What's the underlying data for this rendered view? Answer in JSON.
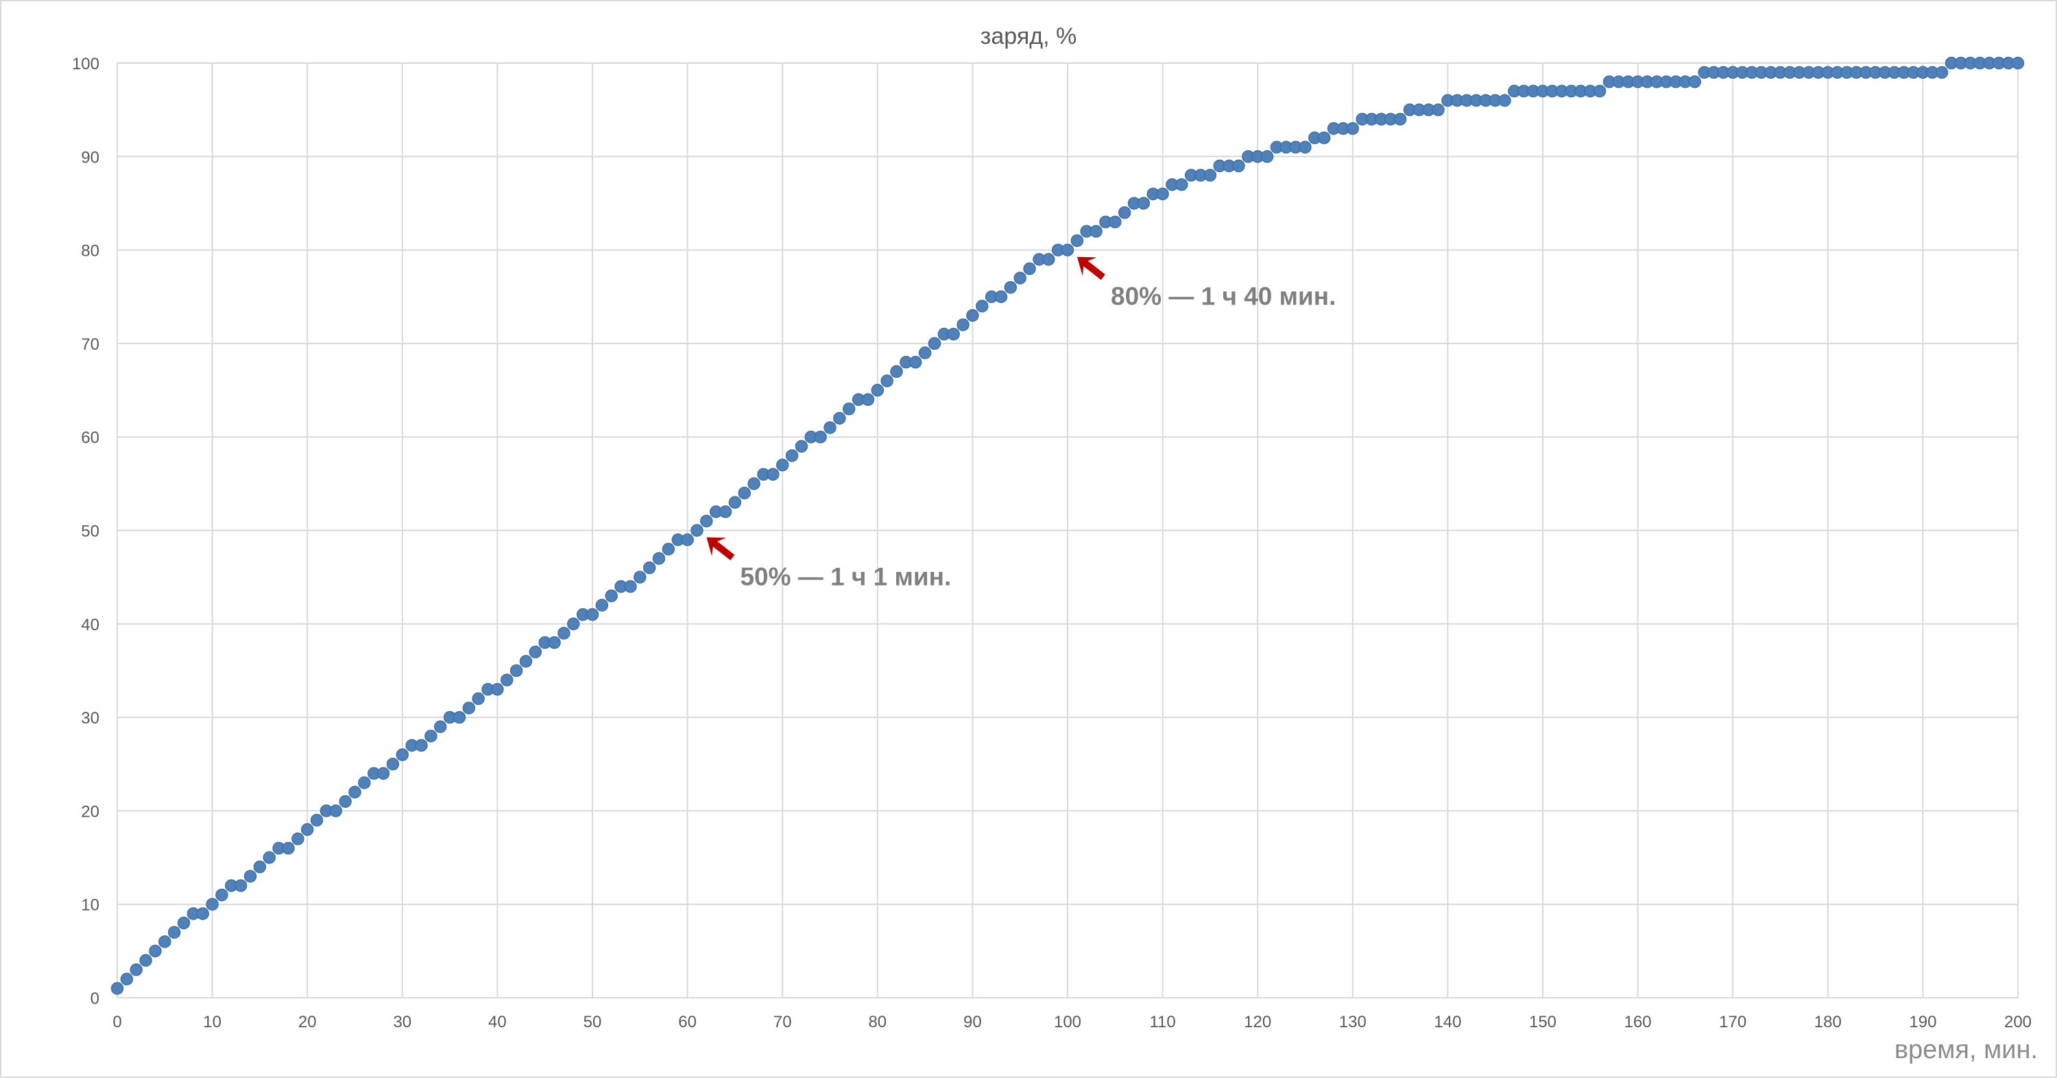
{
  "chart_data": {
    "type": "scatter",
    "title": "заряд, %",
    "xlabel": "время, мин.",
    "ylabel": "",
    "xlim": [
      0,
      200
    ],
    "ylim": [
      0,
      100
    ],
    "x_ticks": [
      0,
      10,
      20,
      30,
      40,
      50,
      60,
      70,
      80,
      90,
      100,
      110,
      120,
      130,
      140,
      150,
      160,
      170,
      180,
      190,
      200
    ],
    "y_ticks": [
      0,
      10,
      20,
      30,
      40,
      50,
      60,
      70,
      80,
      90,
      100
    ],
    "grid": "vertical and horizontal",
    "legend": "none",
    "series": [
      {
        "color": "#4f81bd",
        "x": [
          0,
          1,
          2,
          3,
          4,
          5,
          6,
          7,
          8,
          9,
          10,
          11,
          12,
          13,
          14,
          15,
          16,
          17,
          18,
          19,
          20,
          21,
          22,
          23,
          24,
          25,
          26,
          27,
          28,
          29,
          30,
          31,
          32,
          33,
          34,
          35,
          36,
          37,
          38,
          39,
          40,
          41,
          42,
          43,
          44,
          45,
          46,
          47,
          48,
          49,
          50,
          51,
          52,
          53,
          54,
          55,
          56,
          57,
          58,
          59,
          60,
          61,
          62,
          63,
          64,
          65,
          66,
          67,
          68,
          69,
          70,
          71,
          72,
          73,
          74,
          75,
          76,
          77,
          78,
          79,
          80,
          81,
          82,
          83,
          84,
          85,
          86,
          87,
          88,
          89,
          90,
          91,
          92,
          93,
          94,
          95,
          96,
          97,
          98,
          99,
          100,
          101,
          102,
          103,
          104,
          105,
          106,
          107,
          108,
          109,
          110,
          111,
          112,
          113,
          114,
          115,
          116,
          117,
          118,
          119,
          120,
          121,
          122,
          123,
          124,
          125,
          126,
          127,
          128,
          129,
          130,
          131,
          132,
          133,
          134,
          135,
          136,
          137,
          138,
          139,
          140,
          141,
          142,
          143,
          144,
          145,
          146,
          147,
          148,
          149,
          150,
          151,
          152,
          153,
          154,
          155,
          156,
          157,
          158,
          159,
          160,
          161,
          162,
          163,
          164,
          165,
          166,
          167,
          168,
          169,
          170,
          171,
          172,
          173,
          174,
          175,
          176,
          177,
          178,
          179,
          180,
          181,
          182,
          183,
          184,
          185,
          186,
          187,
          188,
          189,
          190,
          191,
          192,
          193,
          194,
          195,
          196,
          197,
          198,
          199,
          200
        ],
        "y": [
          1,
          2,
          3,
          4,
          5,
          6,
          7,
          8,
          9,
          9,
          10,
          11,
          12,
          12,
          13,
          14,
          15,
          16,
          16,
          17,
          18,
          19,
          20,
          20,
          21,
          22,
          23,
          24,
          24,
          25,
          26,
          27,
          27,
          28,
          29,
          30,
          30,
          31,
          32,
          33,
          33,
          34,
          35,
          36,
          37,
          38,
          38,
          39,
          40,
          41,
          41,
          42,
          43,
          44,
          44,
          45,
          46,
          47,
          48,
          49,
          49,
          50,
          51,
          52,
          52,
          53,
          54,
          55,
          56,
          56,
          57,
          58,
          59,
          60,
          60,
          61,
          62,
          63,
          64,
          64,
          65,
          66,
          67,
          68,
          68,
          69,
          70,
          71,
          71,
          72,
          73,
          74,
          75,
          75,
          76,
          77,
          78,
          79,
          79,
          80,
          80,
          81,
          82,
          82,
          83,
          83,
          84,
          85,
          85,
          86,
          86,
          87,
          87,
          88,
          88,
          88,
          89,
          89,
          89,
          90,
          90,
          90,
          91,
          91,
          91,
          91,
          92,
          92,
          93,
          93,
          93,
          94,
          94,
          94,
          94,
          94,
          95,
          95,
          95,
          95,
          96,
          96,
          96,
          96,
          96,
          96,
          96,
          97,
          97,
          97,
          97,
          97,
          97,
          97,
          97,
          97,
          97,
          98,
          98,
          98,
          98,
          98,
          98,
          98,
          98,
          98,
          98,
          99,
          99,
          99,
          99,
          99,
          99,
          99,
          99,
          99,
          99,
          99,
          99,
          99,
          99,
          99,
          99,
          99,
          99,
          99,
          99,
          99,
          99,
          99,
          99,
          99,
          99,
          100,
          100,
          100,
          100,
          100,
          100,
          100,
          100
        ]
      }
    ],
    "annotations": [
      {
        "text": "50% — 1 ч 1 мин.",
        "x": 61,
        "y": 50,
        "arrow_color": "#c00000"
      },
      {
        "text": "80% — 1 ч 40 мин.",
        "x": 100,
        "y": 80,
        "arrow_color": "#c00000"
      }
    ]
  }
}
